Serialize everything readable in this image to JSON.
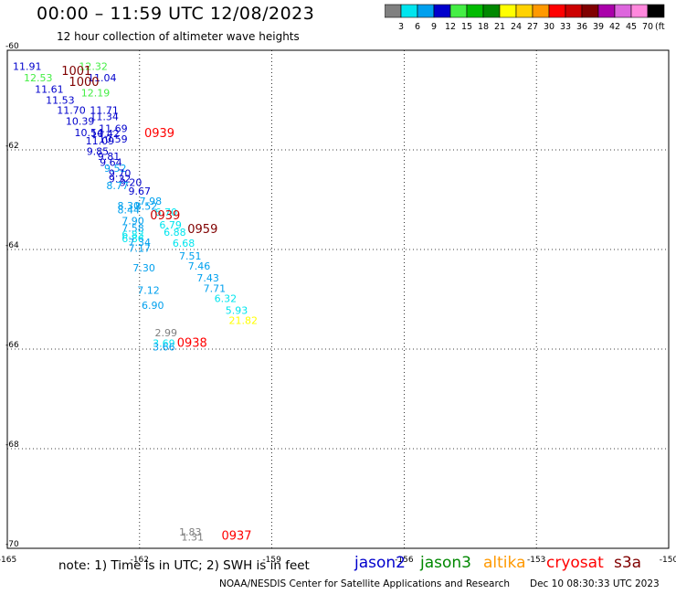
{
  "header": {
    "title": "00:00 – 11:59 UTC 12/08/2023",
    "subtitle": "12 hour collection of altimeter wave heights"
  },
  "color_scale": {
    "bins": [
      {
        "label": "3",
        "color": "#808080"
      },
      {
        "label": "6",
        "color": "#00e5ee"
      },
      {
        "label": "9",
        "color": "#00a0ee"
      },
      {
        "label": "12",
        "color": "#0000cc"
      },
      {
        "label": "15",
        "color": "#44ee44"
      },
      {
        "label": "18",
        "color": "#00bb00"
      },
      {
        "label": "21",
        "color": "#008800"
      },
      {
        "label": "24",
        "color": "#ffff00"
      },
      {
        "label": "27",
        "color": "#ffd200"
      },
      {
        "label": "30",
        "color": "#ff9900"
      },
      {
        "label": "33",
        "color": "#ff0000"
      },
      {
        "label": "36",
        "color": "#cc0000"
      },
      {
        "label": "39",
        "color": "#800000"
      },
      {
        "label": "42",
        "color": "#aa00aa"
      },
      {
        "label": "45",
        "color": "#dd66dd"
      },
      {
        "label": "70",
        "color": "#ff88dd"
      },
      {
        "label": "",
        "color": "#000000"
      }
    ],
    "unit": "(ft)"
  },
  "chart_data": {
    "type": "scatter",
    "title": "00:00 – 11:59 UTC 12/08/2023",
    "subtitle": "12 hour collection of altimeter wave heights",
    "xlabel": "",
    "ylabel": "",
    "xlim": [
      -165,
      -150
    ],
    "ylim": [
      -70,
      -60
    ],
    "x_ticks": [
      "-165",
      "-162",
      "-159",
      "-156",
      "-153",
      "-150"
    ],
    "y_ticks": [
      "-60",
      "-62",
      "-64",
      "-66",
      "-68",
      "-70"
    ],
    "grid": true,
    "grid_style": "dotted",
    "value_unit": "ft",
    "times": [
      {
        "label": "1001",
        "lon": -163.43,
        "lat": -60.4,
        "color": "#800000"
      },
      {
        "label": "1000",
        "lon": -163.26,
        "lat": -60.62,
        "color": "#800000"
      },
      {
        "label": "0939",
        "lon": -161.55,
        "lat": -61.65,
        "color": "#ff0000"
      },
      {
        "label": "0939",
        "lon": -161.42,
        "lat": -63.3,
        "color": "#cc0000"
      },
      {
        "label": "0959",
        "lon": -160.57,
        "lat": -63.58,
        "color": "#800000"
      },
      {
        "label": "0938",
        "lon": -160.81,
        "lat": -65.86,
        "color": "#ff0000"
      },
      {
        "label": "0937",
        "lon": -159.8,
        "lat": -69.73,
        "color": "#ff0000"
      }
    ],
    "points": [
      {
        "lon": -164.55,
        "lat": -60.32,
        "value": "11.91",
        "color": "#0000cc"
      },
      {
        "lon": -163.05,
        "lat": -60.32,
        "value": "12.32",
        "color": "#44ee44"
      },
      {
        "lon": -164.3,
        "lat": -60.55,
        "value": "12.53",
        "color": "#44ee44"
      },
      {
        "lon": -162.85,
        "lat": -60.55,
        "value": "11.04",
        "color": "#0000cc"
      },
      {
        "lon": -164.05,
        "lat": -60.78,
        "value": "11.61",
        "color": "#0000cc"
      },
      {
        "lon": -163.0,
        "lat": -60.85,
        "value": "12.19",
        "color": "#44ee44"
      },
      {
        "lon": -163.8,
        "lat": -61.0,
        "value": "11.53",
        "color": "#0000cc"
      },
      {
        "lon": -163.55,
        "lat": -61.2,
        "value": "11.70",
        "color": "#0000cc"
      },
      {
        "lon": -162.8,
        "lat": -61.2,
        "value": "11.71",
        "color": "#0000cc"
      },
      {
        "lon": -162.8,
        "lat": -61.33,
        "value": "11.34",
        "color": "#0000cc"
      },
      {
        "lon": -163.35,
        "lat": -61.42,
        "value": "10.39",
        "color": "#0000cc"
      },
      {
        "lon": -162.6,
        "lat": -61.57,
        "value": "11.69",
        "color": "#0000cc"
      },
      {
        "lon": -163.15,
        "lat": -61.65,
        "value": "10.54",
        "color": "#0000cc"
      },
      {
        "lon": -162.78,
        "lat": -61.67,
        "value": "10.42",
        "color": "#0000cc"
      },
      {
        "lon": -162.6,
        "lat": -61.78,
        "value": "10.59",
        "color": "#0000cc"
      },
      {
        "lon": -162.9,
        "lat": -61.82,
        "value": "11.09",
        "color": "#0000cc"
      },
      {
        "lon": -162.95,
        "lat": -62.03,
        "value": "9.85",
        "color": "#0000cc"
      },
      {
        "lon": -162.7,
        "lat": -62.13,
        "value": "9.81",
        "color": "#0000cc"
      },
      {
        "lon": -162.65,
        "lat": -62.25,
        "value": "9.64",
        "color": "#0000cc"
      },
      {
        "lon": -162.55,
        "lat": -62.37,
        "value": "9.52",
        "color": "#00a0ee"
      },
      {
        "lon": -162.45,
        "lat": -62.47,
        "value": "9.70",
        "color": "#0000cc"
      },
      {
        "lon": -162.45,
        "lat": -62.58,
        "value": "9.32",
        "color": "#0000cc"
      },
      {
        "lon": -162.2,
        "lat": -62.65,
        "value": "9.20",
        "color": "#0000cc"
      },
      {
        "lon": -162.5,
        "lat": -62.72,
        "value": "8.77",
        "color": "#00a0ee"
      },
      {
        "lon": -162.0,
        "lat": -62.83,
        "value": "9.67",
        "color": "#0000cc"
      },
      {
        "lon": -161.75,
        "lat": -63.03,
        "value": "7.98",
        "color": "#00a0ee"
      },
      {
        "lon": -162.25,
        "lat": -63.12,
        "value": "8.30",
        "color": "#00a0ee"
      },
      {
        "lon": -162.25,
        "lat": -63.2,
        "value": "8.44",
        "color": "#00a0ee"
      },
      {
        "lon": -161.85,
        "lat": -63.13,
        "value": "8.52",
        "color": "#00a0ee"
      },
      {
        "lon": -161.4,
        "lat": -63.25,
        "value": "6.70",
        "color": "#00e5ee"
      },
      {
        "lon": -162.15,
        "lat": -63.42,
        "value": "7.90",
        "color": "#00a0ee"
      },
      {
        "lon": -161.3,
        "lat": -63.5,
        "value": "6.79",
        "color": "#00e5ee"
      },
      {
        "lon": -162.15,
        "lat": -63.57,
        "value": "7.58",
        "color": "#00a0ee"
      },
      {
        "lon": -161.2,
        "lat": -63.65,
        "value": "6.88",
        "color": "#00e5ee"
      },
      {
        "lon": -162.15,
        "lat": -63.7,
        "value": "6.83",
        "color": "#00e5ee"
      },
      {
        "lon": -162.15,
        "lat": -63.78,
        "value": "6.86",
        "color": "#00e5ee"
      },
      {
        "lon": -162.0,
        "lat": -63.85,
        "value": "7.34",
        "color": "#00a0ee"
      },
      {
        "lon": -161.0,
        "lat": -63.87,
        "value": "6.68",
        "color": "#00e5ee"
      },
      {
        "lon": -162.0,
        "lat": -63.97,
        "value": "7.17",
        "color": "#00a0ee"
      },
      {
        "lon": -160.85,
        "lat": -64.13,
        "value": "7.51",
        "color": "#00a0ee"
      },
      {
        "lon": -160.65,
        "lat": -64.33,
        "value": "7.46",
        "color": "#00a0ee"
      },
      {
        "lon": -161.9,
        "lat": -64.37,
        "value": "7.30",
        "color": "#00a0ee"
      },
      {
        "lon": -160.45,
        "lat": -64.57,
        "value": "7.43",
        "color": "#00a0ee"
      },
      {
        "lon": -160.3,
        "lat": -64.78,
        "value": "7.71",
        "color": "#00a0ee"
      },
      {
        "lon": -161.8,
        "lat": -64.82,
        "value": "7.12",
        "color": "#00a0ee"
      },
      {
        "lon": -160.05,
        "lat": -64.98,
        "value": "6.32",
        "color": "#00e5ee"
      },
      {
        "lon": -161.7,
        "lat": -65.12,
        "value": "6.90",
        "color": "#00a0ee"
      },
      {
        "lon": -159.8,
        "lat": -65.22,
        "value": "5.93",
        "color": "#00e5ee"
      },
      {
        "lon": -159.65,
        "lat": -65.42,
        "value": "21.82",
        "color": "#ffff00"
      },
      {
        "lon": -161.4,
        "lat": -65.67,
        "value": "2.99",
        "color": "#808080"
      },
      {
        "lon": -161.45,
        "lat": -65.88,
        "value": "3.69",
        "color": "#00e5ee"
      },
      {
        "lon": -161.45,
        "lat": -65.95,
        "value": "3.66",
        "color": "#00a0ee"
      },
      {
        "lon": -160.85,
        "lat": -69.67,
        "value": "1.83",
        "color": "#808080"
      },
      {
        "lon": -160.8,
        "lat": -69.77,
        "value": "1.31",
        "color": "#808080"
      }
    ]
  },
  "footer": {
    "note": "note:  1) Time is in UTC;  2) SWH is in feet",
    "missions": [
      {
        "name": "jason2",
        "color": "#0000cc"
      },
      {
        "name": "jason3",
        "color": "#008800"
      },
      {
        "name": "altika",
        "color": "#ff9900"
      },
      {
        "name": "cryosat",
        "color": "#ff0000"
      },
      {
        "name": "s3a",
        "color": "#800000"
      }
    ],
    "credit": "NOAA/NESDIS Center for Satellite Applications and Research",
    "timestamp": "Dec 10 08:30:33 UTC 2023"
  }
}
